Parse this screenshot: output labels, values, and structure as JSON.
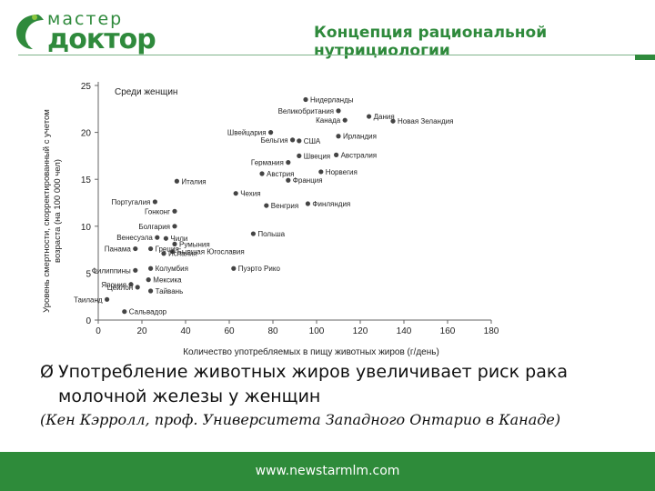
{
  "header": {
    "logo_top": "мастер",
    "logo_bottom": "доктор",
    "title": "Концепция рациональной нутрициологии"
  },
  "bullet": {
    "mark": "Ø",
    "text": "Употребление животных жиров увеличивает риск рака молочной железы у женщин"
  },
  "citation": "(Кен Кэрролл, проф. Университета Западного Онтарио в Канаде)",
  "footer": {
    "url": "www.newstarmlm.com"
  },
  "colors": {
    "brand": "#2e8b3a",
    "point": "#444444"
  },
  "chart_data": {
    "type": "scatter",
    "title": "Среди женщин",
    "xlabel": "Количество употребляемых в пищу животных жиров (г/день)",
    "ylabel": "Уровень смертности, скорректированный с учетом возраста (на 100 000 чел)",
    "xlim": [
      0,
      180
    ],
    "ylim": [
      0,
      25
    ],
    "xticks": [
      0,
      20,
      40,
      60,
      80,
      100,
      120,
      140,
      160,
      180
    ],
    "yticks": [
      0,
      5,
      10,
      15,
      20,
      25
    ],
    "grid": false,
    "points": [
      {
        "label": "Нидерланды",
        "x": 95,
        "y": 23.5
      },
      {
        "label": "Великобритания",
        "x": 110,
        "y": 22.3
      },
      {
        "label": "Дания",
        "x": 124,
        "y": 21.7
      },
      {
        "label": "Канада",
        "x": 113,
        "y": 21.3
      },
      {
        "label": "Новая Зеландия",
        "x": 135,
        "y": 21.2
      },
      {
        "label": "Швейцария",
        "x": 79,
        "y": 20.0
      },
      {
        "label": "Ирландия",
        "x": 110,
        "y": 19.6
      },
      {
        "label": "Бельгия",
        "x": 89,
        "y": 19.2
      },
      {
        "label": "США",
        "x": 92,
        "y": 19.1
      },
      {
        "label": "Швеция",
        "x": 92,
        "y": 17.5
      },
      {
        "label": "Германия",
        "x": 87,
        "y": 16.8
      },
      {
        "label": "Австралия",
        "x": 109,
        "y": 17.6
      },
      {
        "label": "Норвегия",
        "x": 102,
        "y": 15.8
      },
      {
        "label": "Австрия",
        "x": 75,
        "y": 15.6
      },
      {
        "label": "Франция",
        "x": 87,
        "y": 14.9
      },
      {
        "label": "Италия",
        "x": 36,
        "y": 14.8
      },
      {
        "label": "Чехия",
        "x": 63,
        "y": 13.5
      },
      {
        "label": "Португалия",
        "x": 26,
        "y": 12.6
      },
      {
        "label": "Венгрия",
        "x": 77,
        "y": 12.2
      },
      {
        "label": "Финляндия",
        "x": 96,
        "y": 12.4
      },
      {
        "label": "Гонконг",
        "x": 35,
        "y": 11.6
      },
      {
        "label": "Болгария",
        "x": 35,
        "y": 10.0
      },
      {
        "label": "Польша",
        "x": 71,
        "y": 9.2
      },
      {
        "label": "Венесуэла",
        "x": 27,
        "y": 8.8
      },
      {
        "label": "Чили",
        "x": 31,
        "y": 8.7
      },
      {
        "label": "Румыния",
        "x": 35,
        "y": 8.1
      },
      {
        "label": "Панама",
        "x": 17,
        "y": 7.6
      },
      {
        "label": "Греция",
        "x": 24,
        "y": 7.6
      },
      {
        "label": "Бывшая Югославия",
        "x": 34,
        "y": 7.3
      },
      {
        "label": "Испания",
        "x": 30,
        "y": 7.1
      },
      {
        "label": "Колумбия",
        "x": 24,
        "y": 5.5
      },
      {
        "label": "Пуэрто Рико",
        "x": 62,
        "y": 5.5
      },
      {
        "label": "Филиппины",
        "x": 17,
        "y": 5.3
      },
      {
        "label": "Мексика",
        "x": 23,
        "y": 4.3
      },
      {
        "label": "Япония",
        "x": 15,
        "y": 3.8
      },
      {
        "label": "Цейлон",
        "x": 18,
        "y": 3.5
      },
      {
        "label": "Тайвань",
        "x": 24,
        "y": 3.1
      },
      {
        "label": "Таиланд",
        "x": 4,
        "y": 2.2
      },
      {
        "label": "Сальвадор",
        "x": 12,
        "y": 0.9
      }
    ]
  }
}
